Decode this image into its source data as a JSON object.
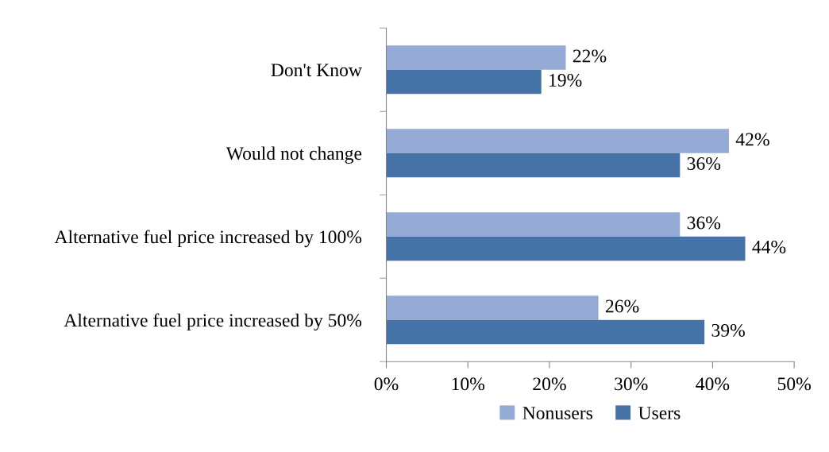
{
  "chart_data": {
    "type": "bar",
    "orientation": "horizontal",
    "categories": [
      "Don't Know",
      "Would not change",
      "Alternative fuel price increased by 100%",
      "Alternative fuel price increased by 50%"
    ],
    "series": [
      {
        "name": "Nonusers",
        "color": "#95abd5",
        "values": [
          22,
          42,
          36,
          26
        ],
        "value_labels": [
          "22%",
          "42%",
          "36%",
          "26%"
        ]
      },
      {
        "name": "Users",
        "color": "#4573a7",
        "values": [
          19,
          36,
          44,
          39
        ],
        "value_labels": [
          "19%",
          "36%",
          "44%",
          "39%"
        ]
      }
    ],
    "xlim": [
      0,
      50
    ],
    "xticks": [
      {
        "value": 0,
        "label": "0%"
      },
      {
        "value": 10,
        "label": "10%"
      },
      {
        "value": 20,
        "label": "20%"
      },
      {
        "value": 30,
        "label": "30%"
      },
      {
        "value": 40,
        "label": "40%"
      },
      {
        "value": 50,
        "label": "50%"
      }
    ],
    "grid": false,
    "legend": "bottom"
  }
}
